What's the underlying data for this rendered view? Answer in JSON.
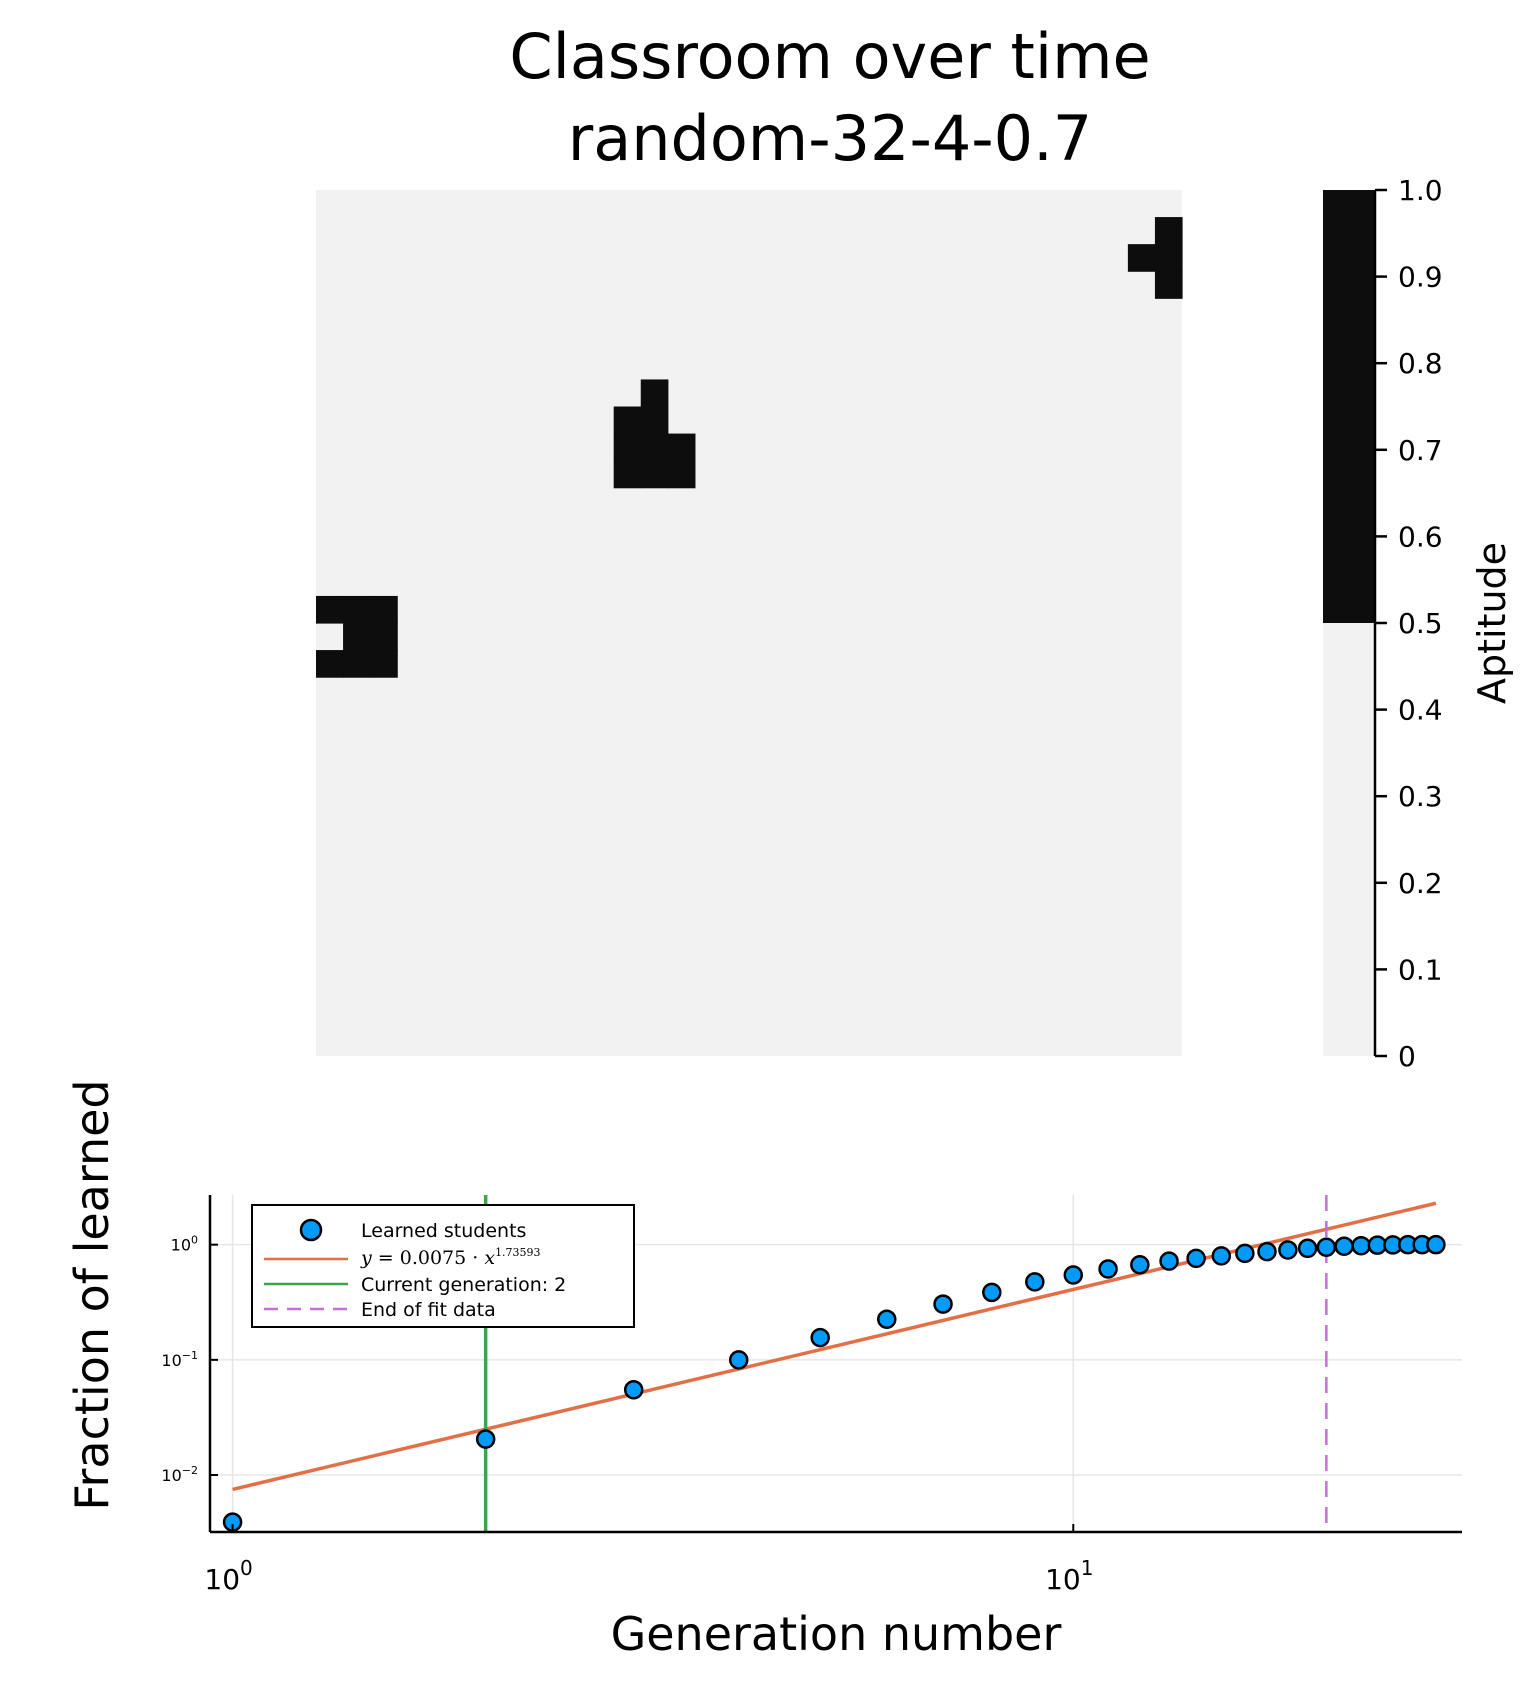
{
  "chart_data": [
    {
      "type": "heatmap",
      "title_line1": "Classroom over time",
      "title_line2": "random-32-4-0.7",
      "grid_size": 32,
      "value_cells": {
        "value": 1.0,
        "cells": [
          [
            31,
            30
          ],
          [
            31,
            29
          ],
          [
            30,
            29
          ],
          [
            31,
            28
          ],
          [
            12,
            24
          ],
          [
            11,
            23
          ],
          [
            12,
            23
          ],
          [
            11,
            22
          ],
          [
            12,
            22
          ],
          [
            13,
            22
          ],
          [
            11,
            21
          ],
          [
            12,
            21
          ],
          [
            13,
            21
          ],
          [
            0,
            16
          ],
          [
            1,
            16
          ],
          [
            2,
            16
          ],
          [
            1,
            15
          ],
          [
            2,
            15
          ],
          [
            0,
            14
          ],
          [
            1,
            14
          ],
          [
            2,
            14
          ]
        ]
      },
      "colorbar": {
        "label": "Aptitude",
        "ticks": [
          "0",
          "0.1",
          "0.2",
          "0.3",
          "0.4",
          "0.5",
          "0.6",
          "0.7",
          "0.8",
          "0.9",
          "1.0"
        ],
        "range": [
          0,
          1
        ],
        "threshold": 0.5,
        "low_color": "#f2f2f2",
        "high_color": "#0d0d0d"
      }
    },
    {
      "type": "scatter",
      "xscale": "log",
      "yscale": "log",
      "xlabel": "Generation number",
      "ylabel": "Fraction of learned",
      "xlim": [
        0.94,
        29
      ],
      "ylim": [
        0.0032,
        2.7
      ],
      "x_ticks": [
        {
          "value": 1,
          "base": "10",
          "exp": "0"
        },
        {
          "value": 10,
          "base": "10",
          "exp": "1"
        }
      ],
      "y_ticks": [
        {
          "value": 0.01,
          "base": "10",
          "exp": "−2"
        },
        {
          "value": 0.1,
          "base": "10",
          "exp": "−1"
        },
        {
          "value": 1,
          "base": "10",
          "exp": "0"
        }
      ],
      "series": [
        {
          "name": "Learned students",
          "kind": "scatter",
          "color": "#009af9",
          "x": [
            1,
            2,
            3,
            4,
            5,
            6,
            7,
            8,
            9,
            10,
            11,
            12,
            13,
            14,
            15,
            16,
            17,
            18,
            19,
            20,
            21,
            22,
            23,
            24,
            25,
            26,
            27
          ],
          "y": [
            0.0039,
            0.0205,
            0.055,
            0.1,
            0.156,
            0.225,
            0.305,
            0.385,
            0.475,
            0.545,
            0.615,
            0.67,
            0.72,
            0.76,
            0.8,
            0.84,
            0.87,
            0.9,
            0.93,
            0.95,
            0.97,
            0.98,
            0.99,
            0.995,
            1.0,
            1.0,
            1.0
          ]
        },
        {
          "name_parts": {
            "lhs": "y",
            "eq": " = 0.0075 · ",
            "var": "x",
            "exp": "1.73593"
          },
          "kind": "line",
          "color": "#e26f46",
          "coef": 0.0075,
          "power": 1.73593,
          "x_range": [
            1,
            27
          ]
        },
        {
          "name": "Current generation: 2",
          "kind": "vline",
          "color": "#3da44d",
          "x": 2
        },
        {
          "name": "End of fit data",
          "kind": "vline-dashed",
          "color": "#c271d2",
          "x": 20
        }
      ],
      "legend_position": "top-left",
      "grid": true
    }
  ]
}
